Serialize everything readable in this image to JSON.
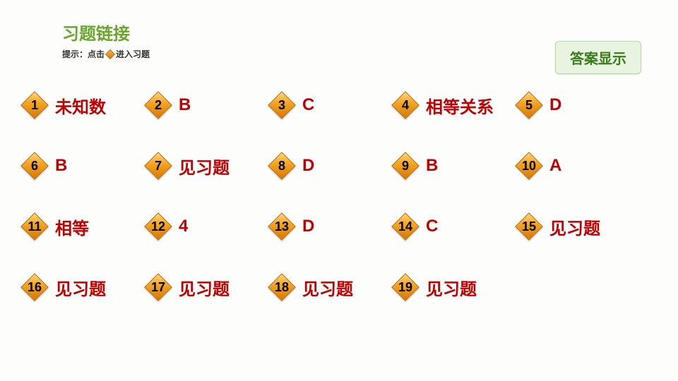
{
  "title": "习题链接",
  "title_color": "#6ba52f",
  "hint_prefix": "提示：点击",
  "hint_suffix": "进入习题",
  "answer_button": "答案显示",
  "answer_button_color": "#3a7a1a",
  "answer_color": "#c00000",
  "diamond_number_color": "#000000",
  "rows": [
    [
      {
        "num": "1",
        "answer": "未知数"
      },
      {
        "num": "2",
        "answer": "B"
      },
      {
        "num": "3",
        "answer": "C"
      },
      {
        "num": "4",
        "answer": "相等关系"
      },
      {
        "num": "5",
        "answer": "D"
      }
    ],
    [
      {
        "num": "6",
        "answer": "B"
      },
      {
        "num": "7",
        "answer": "见习题"
      },
      {
        "num": "8",
        "answer": "D"
      },
      {
        "num": "9",
        "answer": "B"
      },
      {
        "num": "10",
        "answer": "A"
      }
    ],
    [
      {
        "num": "11",
        "answer": "相等"
      },
      {
        "num": "12",
        "answer": "4"
      },
      {
        "num": "13",
        "answer": "D"
      },
      {
        "num": "14",
        "answer": "C"
      },
      {
        "num": "15",
        "answer": "见习题"
      }
    ],
    [
      {
        "num": "16",
        "answer": "见习题"
      },
      {
        "num": "17",
        "answer": "见习题"
      },
      {
        "num": "18",
        "answer": "见习题"
      },
      {
        "num": "19",
        "answer": "见习题"
      }
    ]
  ]
}
